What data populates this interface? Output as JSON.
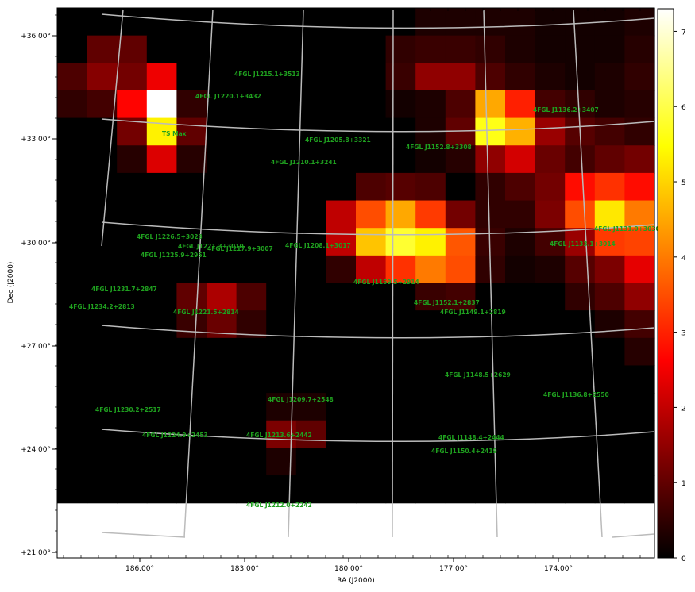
{
  "figure": {
    "xlabel": "RA (J2000)",
    "ylabel": "Dec (J2000)",
    "ts_max_label": "TS Max",
    "colors": {
      "source_label": "#1fa01f",
      "grid": "#bbbbbb",
      "frame": "#000000"
    }
  },
  "chart_data": {
    "type": "heatmap",
    "colormap": "hot",
    "colorbar": {
      "min": 0,
      "max": 7.3,
      "ticks": [
        "0",
        "1",
        "2",
        "3",
        "4",
        "5",
        "6",
        "7"
      ]
    },
    "ra_ticks": [
      "186.00°",
      "183.00°",
      "180.00°",
      "177.00°",
      "174.00°"
    ],
    "dec_ticks": [
      "+36.00°",
      "+33.00°",
      "+30.00°",
      "+27.00°",
      "+24.00°",
      "+21.00°"
    ],
    "grid": [
      [
        0,
        0,
        0,
        0,
        0,
        0,
        0,
        0,
        0,
        0,
        0,
        0,
        0.3,
        0.3,
        0.3,
        0.3,
        0.2,
        0.2,
        0.2,
        0.3
      ],
      [
        0,
        1.0,
        1.0,
        0,
        0,
        0,
        0,
        0,
        0,
        0,
        0,
        0.5,
        0.6,
        0.6,
        0.5,
        0.3,
        0.2,
        0.2,
        0.2,
        0.4
      ],
      [
        0.8,
        1.4,
        1.2,
        2.5,
        0,
        0,
        0,
        0,
        0,
        0,
        0,
        0.6,
        1.5,
        1.5,
        0.8,
        0.5,
        0.3,
        0.2,
        0.3,
        0.5
      ],
      [
        0.5,
        0.7,
        2.7,
        7.3,
        0.5,
        0,
        0,
        0,
        0,
        0,
        0,
        0.2,
        0.3,
        0.8,
        4.5,
        3.0,
        0.7,
        0.5,
        0.3,
        0.4
      ],
      [
        0,
        0,
        1.2,
        5.3,
        1.0,
        0,
        0,
        0,
        0,
        0,
        0,
        0,
        0.3,
        1.0,
        5.6,
        4.6,
        1.6,
        0.9,
        0.7,
        0.5
      ],
      [
        0,
        0,
        0.4,
        2.3,
        0.4,
        0,
        0,
        0,
        0,
        0,
        0,
        0,
        0.2,
        0.4,
        1.5,
        2.2,
        1.1,
        0.7,
        1.0,
        1.2
      ],
      [
        0,
        0,
        0,
        0,
        0,
        0,
        0,
        0,
        0,
        0,
        0.8,
        0.9,
        0.8,
        0,
        0.5,
        0.8,
        1.2,
        2.8,
        3.2,
        2.8
      ],
      [
        0,
        0,
        0,
        0,
        0,
        0,
        0,
        0,
        0,
        2.0,
        3.5,
        4.5,
        3.3,
        1.2,
        0.5,
        0.5,
        1.3,
        3.5,
        5.2,
        4.0
      ],
      [
        0,
        0,
        0,
        0,
        0,
        0,
        0,
        0,
        0,
        2.0,
        4.8,
        5.8,
        5.3,
        3.6,
        0.6,
        0.3,
        0.7,
        1.6,
        3.3,
        3.4
      ],
      [
        0,
        0,
        0,
        0,
        0,
        0,
        0,
        0,
        0,
        0.5,
        2.0,
        3.2,
        4.0,
        3.5,
        0.5,
        0.2,
        0.3,
        0.9,
        1.3,
        2.4
      ],
      [
        0,
        0,
        0,
        0,
        1.0,
        1.8,
        0.8,
        0,
        0,
        0,
        0,
        0,
        0.6,
        0.7,
        0,
        0,
        0,
        0.5,
        0.8,
        1.5
      ],
      [
        0,
        0,
        0,
        0,
        0.6,
        1.1,
        0.5,
        0,
        0,
        0,
        0,
        0,
        0,
        0,
        0,
        0,
        0,
        0,
        0.3,
        0.7
      ],
      [
        0,
        0,
        0,
        0,
        0,
        0,
        0,
        0,
        0,
        0,
        0,
        0,
        0,
        0,
        0,
        0,
        0,
        0,
        0,
        0.4
      ],
      [
        0,
        0,
        0,
        0,
        0,
        0,
        0,
        0,
        0,
        0,
        0,
        0,
        0,
        0,
        0,
        0,
        0,
        0,
        0,
        0
      ],
      [
        0,
        0,
        0,
        0,
        0,
        0,
        0,
        0.3,
        0.3,
        0,
        0,
        0,
        0,
        0,
        0,
        0,
        0,
        0,
        0,
        0
      ],
      [
        0,
        0,
        0,
        0,
        0,
        0,
        0,
        1.3,
        1.0,
        0,
        0,
        0,
        0,
        0,
        0,
        0,
        0,
        0,
        0,
        0
      ],
      [
        0,
        0,
        0,
        0,
        0,
        0,
        0,
        0.3,
        0,
        0,
        0,
        0,
        0,
        0,
        0,
        0,
        0,
        0,
        0,
        0
      ],
      [
        0,
        0,
        0,
        0,
        0,
        0,
        0,
        0,
        0,
        0,
        0,
        0,
        0,
        0,
        0,
        0,
        0,
        0,
        0,
        0
      ]
    ],
    "sources": [
      {
        "name": "4FGL J1215.1+3513"
      },
      {
        "name": "4FGL J1220.1+3432"
      },
      {
        "name": "4FGL J1136.2+3407"
      },
      {
        "name": "4FGL J1205.8+3321"
      },
      {
        "name": "4FGL J1152.8+3308"
      },
      {
        "name": "4FGL J1210.1+3241"
      },
      {
        "name": "4FGL J1226.5+3023"
      },
      {
        "name": "4FGL J1221.3+3010"
      },
      {
        "name": "4FGL J1217.9+3007"
      },
      {
        "name": "4FGL J1225.9+2951"
      },
      {
        "name": "4FGL J1208.1+3017"
      },
      {
        "name": "4FGL J1133.1+3014"
      },
      {
        "name": "4FGL J1131.0+3030"
      },
      {
        "name": "4FGL J1159.5+2914"
      },
      {
        "name": "4FGL J1231.7+2847"
      },
      {
        "name": "4FGL J1234.2+2813"
      },
      {
        "name": "4FGL J1221.5+2814"
      },
      {
        "name": "4FGL J1152.1+2837"
      },
      {
        "name": "4FGL J1149.1+2819"
      },
      {
        "name": "4FGL J1148.5+2629"
      },
      {
        "name": "4FGL J1136.8+2550"
      },
      {
        "name": "4FGL J1209.7+2548"
      },
      {
        "name": "4FGL J1230.2+2517"
      },
      {
        "name": "4FGL J1224.9+2453"
      },
      {
        "name": "4FGL J1213.6+2442"
      },
      {
        "name": "4FGL J1148.4+2444"
      },
      {
        "name": "4FGL J1150.4+2419"
      },
      {
        "name": "4FGL J1212.0+2242"
      }
    ]
  }
}
